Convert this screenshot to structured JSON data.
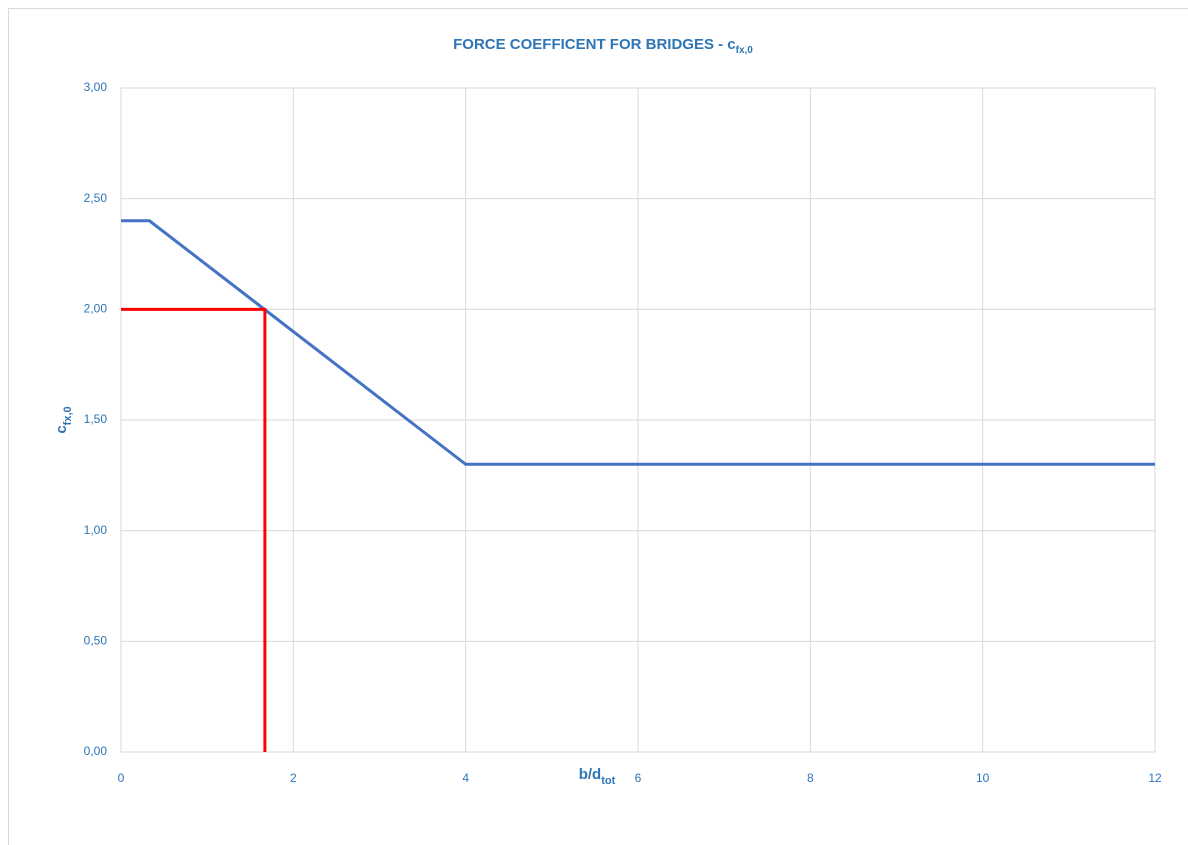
{
  "chart_data": {
    "type": "line",
    "title": "FORCE COEFFICENT FOR BRIDGES - c",
    "title_subscript": "fx,0",
    "x_label": "b/d",
    "x_label_subscript": "tot",
    "y_label": "c",
    "y_label_subscript": "fx,0",
    "series": [
      {
        "color": "#4472c4",
        "x": [
          0,
          0.33,
          4,
          12
        ],
        "values": [
          2.4,
          2.4,
          1.3,
          1.3
        ]
      },
      {
        "color": "#ff0000",
        "x": [
          0,
          1.67,
          1.67
        ],
        "values": [
          2.0,
          2.0,
          0
        ]
      }
    ],
    "xlim": [
      0,
      12
    ],
    "xticks": [
      0,
      2,
      4,
      6,
      8,
      10,
      12
    ],
    "ylim": [
      0,
      3
    ],
    "yticks": [
      {
        "value": 0,
        "label": "0,00"
      },
      {
        "value": 0.5,
        "label": "0,50"
      },
      {
        "value": 1,
        "label": "1,00"
      },
      {
        "value": 1.5,
        "label": "1,50"
      },
      {
        "value": 2,
        "label": "2,00"
      },
      {
        "value": 2.5,
        "label": "2,50"
      },
      {
        "value": 3,
        "label": "3,00"
      }
    ],
    "grid": true
  }
}
